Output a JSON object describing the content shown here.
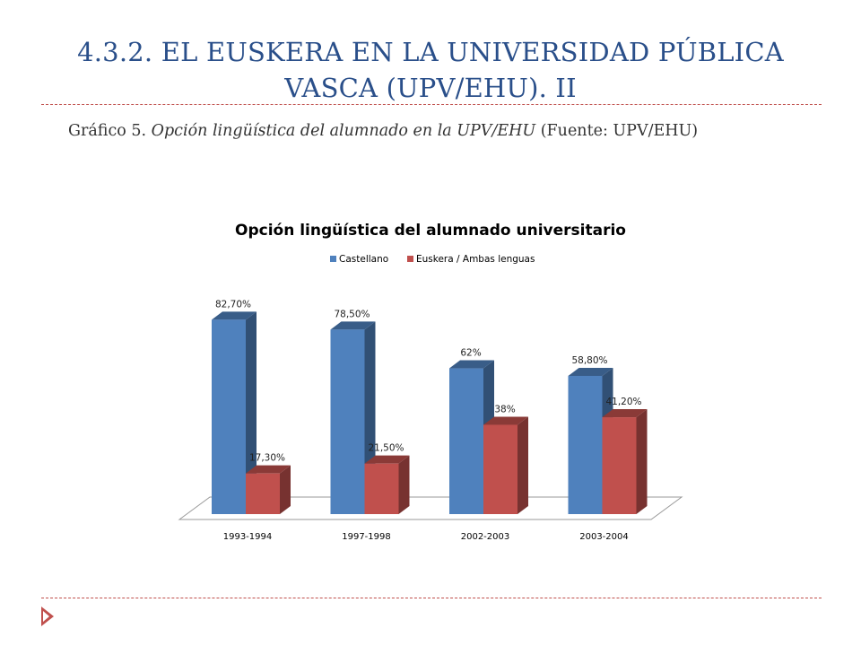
{
  "slide": {
    "title": "4.3.2. EL EUSKERA EN LA UNIVERSIDAD PÚBLICA VASCA (UPV/EHU). II",
    "caption_prefix": "Gráfico 5. ",
    "caption_italic": "Opción lingüística del alumnado en la UPV/EHU",
    "caption_suffix": " (Fuente: UPV/EHU)"
  },
  "chart_data": {
    "type": "bar",
    "title": "Opción lingüística del alumnado universitario",
    "categories": [
      "1993-1994",
      "1997-1998",
      "2002-2003",
      "2003-2004"
    ],
    "series": [
      {
        "name": "Castellano",
        "values": [
          82.7,
          78.5,
          62,
          58.8
        ],
        "labels": [
          "82,70%",
          "78,50%",
          "62%",
          "58,80%"
        ],
        "color": "#4f81bd"
      },
      {
        "name": "Euskera / Ambas lenguas",
        "values": [
          17.3,
          21.5,
          38,
          41.2
        ],
        "labels": [
          "17,30%",
          "21,50%",
          "38%",
          "41,20%"
        ],
        "color": "#c0504d"
      }
    ],
    "ylim": [
      0,
      100
    ],
    "grid": false,
    "legend": "top-center",
    "style": "3d-column"
  }
}
